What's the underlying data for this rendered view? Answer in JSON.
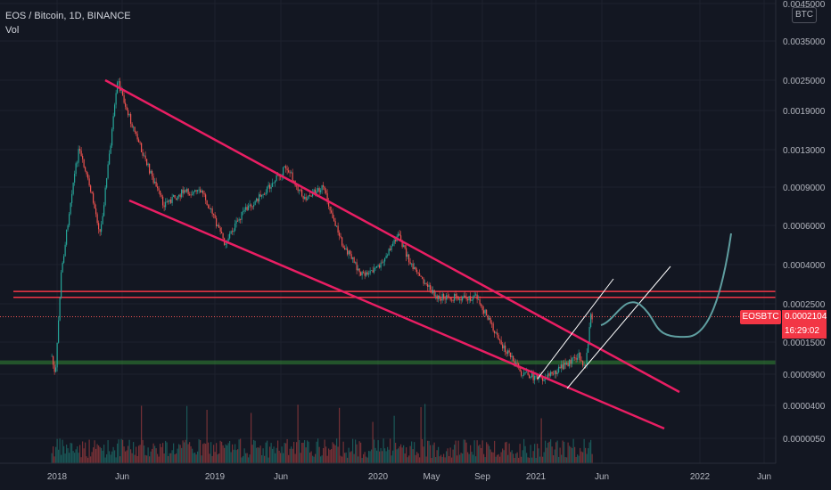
{
  "header": {
    "symbol_line": "EOS / Bitcoin, 1D, BINANCE",
    "volume_label": "Vol",
    "unit_badge": "BTC"
  },
  "price_marker": {
    "ticker": "EOSBTC",
    "price": "0.0002104",
    "countdown": "16:29:02"
  },
  "colors": {
    "background": "#131722",
    "up": "#26a69a",
    "down": "#ef5350",
    "trendline": "#e91e63",
    "resistance": "#f23645",
    "support": "#4caf50",
    "projection": "#5f9ea0",
    "channel": "#ffffff"
  },
  "chart_data": {
    "type": "line",
    "title": "EOS / Bitcoin, 1D, BINANCE",
    "y_axis": {
      "scale": "log",
      "tick_labels": [
        "0.0045000",
        "0.0035000",
        "0.0025000",
        "0.0019000",
        "0.0013000",
        "0.0009000",
        "0.0006000",
        "0.0004000",
        "0.0002500",
        "0.0001500",
        "0.0000900",
        "0.0000400",
        "0.0000050"
      ],
      "tick_values": [
        0.0045,
        0.0035,
        0.0025,
        0.0019,
        0.0013,
        0.0009,
        0.0006,
        0.0004,
        0.00025,
        0.00015,
        9e-05,
        4e-05,
        5e-06
      ]
    },
    "x_axis": {
      "tick_labels": [
        "2018",
        "Jun",
        "2019",
        "Jun",
        "2020",
        "May",
        "Sep",
        "2021",
        "Jun",
        "2022",
        "Jun"
      ]
    },
    "series": [
      {
        "values": [
          {
            "date": "2017-12-20",
            "price": 0.00012
          },
          {
            "date": "2017-12-28",
            "price": 8e-05
          },
          {
            "date": "2018-01-10",
            "price": 0.00035
          },
          {
            "date": "2018-02-05",
            "price": 0.0009
          },
          {
            "date": "2018-02-20",
            "price": 0.0013
          },
          {
            "date": "2018-03-20",
            "price": 0.00085
          },
          {
            "date": "2018-04-10",
            "price": 0.00055
          },
          {
            "date": "2018-05-20",
            "price": 0.0025
          },
          {
            "date": "2018-06-10",
            "price": 0.0019
          },
          {
            "date": "2018-07-20",
            "price": 0.0012
          },
          {
            "date": "2018-09-01",
            "price": 0.00075
          },
          {
            "date": "2018-10-15",
            "price": 0.00085
          },
          {
            "date": "2018-12-01",
            "price": 0.00085
          },
          {
            "date": "2019-01-20",
            "price": 0.0005
          },
          {
            "date": "2019-03-01",
            "price": 0.00068
          },
          {
            "date": "2019-05-01",
            "price": 0.0009
          },
          {
            "date": "2019-06-10",
            "price": 0.0011
          },
          {
            "date": "2019-07-20",
            "price": 0.0008
          },
          {
            "date": "2019-09-01",
            "price": 0.0009
          },
          {
            "date": "2019-10-15",
            "price": 0.0005
          },
          {
            "date": "2019-12-01",
            "price": 0.00035
          },
          {
            "date": "2020-01-15",
            "price": 0.0004
          },
          {
            "date": "2020-02-20",
            "price": 0.00055
          },
          {
            "date": "2020-03-25",
            "price": 0.00038
          },
          {
            "date": "2020-05-20",
            "price": 0.00027
          },
          {
            "date": "2020-07-20",
            "price": 0.00027
          },
          {
            "date": "2020-08-20",
            "price": 0.00027
          },
          {
            "date": "2020-10-10",
            "price": 0.00015
          },
          {
            "date": "2020-12-01",
            "price": 9e-05
          },
          {
            "date": "2021-01-15",
            "price": 8e-05
          },
          {
            "date": "2021-03-01",
            "price": 0.0001
          },
          {
            "date": "2021-04-10",
            "price": 0.00012
          },
          {
            "date": "2021-04-25",
            "price": 0.0001
          },
          {
            "date": "2021-05-08",
            "price": 0.00024
          },
          {
            "date": "2021-05-10",
            "price": 0.0002104
          }
        ]
      }
    ],
    "annotations": {
      "resistance_band": [
        0.00027,
        0.00029
      ],
      "support_band": [
        0.000105,
        0.000112
      ],
      "last_price": 0.0002104
    },
    "grid": true
  }
}
